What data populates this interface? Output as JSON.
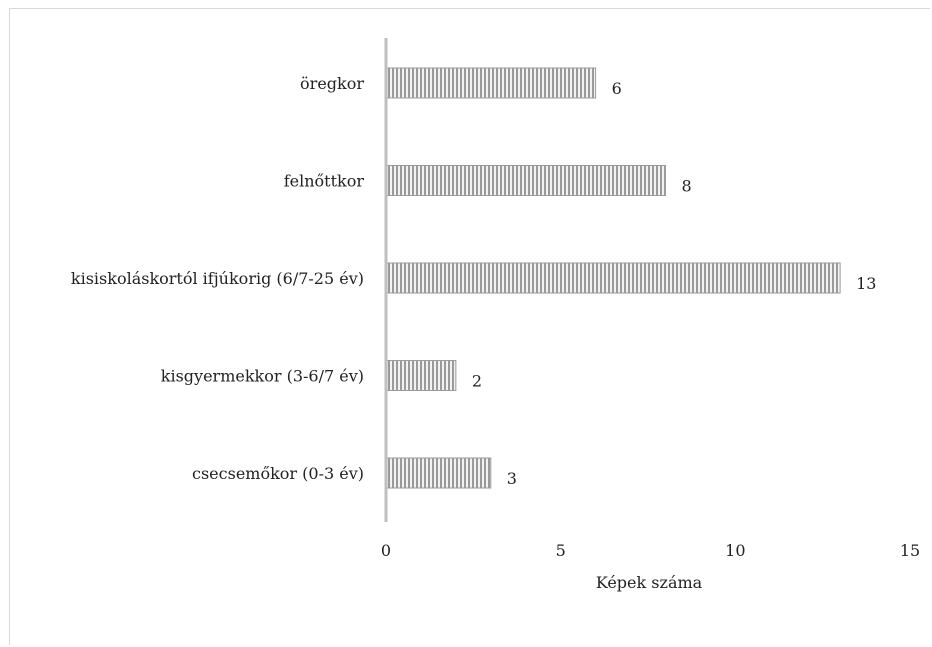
{
  "chart_data": {
    "type": "bar",
    "orientation": "horizontal",
    "categories": [
      "csecsemőkor (0-3 év)",
      "kisgyermekkor (3-6/7 év)",
      "kisiskoláskortól ifjúkorig (6/7-25 év)",
      "felnőttkor",
      "öregkor"
    ],
    "values": [
      3,
      2,
      13,
      8,
      6
    ],
    "value_labels": [
      "3",
      "2",
      "13",
      "8",
      "6"
    ],
    "title": "",
    "xlabel": "Képek száma",
    "ylabel": "",
    "xlim": [
      0,
      15
    ],
    "xticks": [
      0,
      5,
      10,
      15
    ],
    "xtick_labels": [
      "0",
      "5",
      "10",
      "15"
    ],
    "grid": false,
    "legend": "none",
    "bar_fill": "vertical-stripes",
    "colors": {
      "bar_stripe": "#9a9a9a",
      "bar_gap": "#f2f2f2",
      "axis": "#bfbfbf",
      "text": "#222222"
    }
  }
}
